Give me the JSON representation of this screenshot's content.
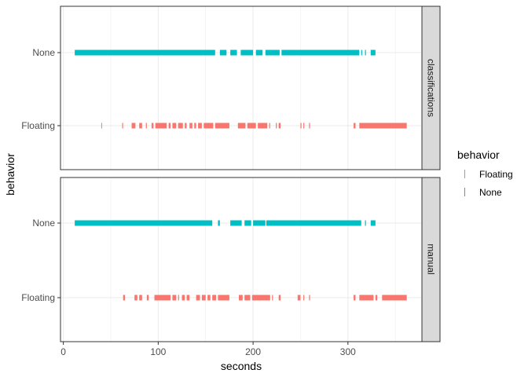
{
  "chart_data": {
    "type": "scatter",
    "xlabel": "seconds",
    "ylabel": "behavior",
    "xlim": [
      -3,
      378
    ],
    "x_ticks": [
      0,
      100,
      200,
      300
    ],
    "y_categories": [
      "Floating",
      "None"
    ],
    "grid": true,
    "legend": {
      "title": "behavior",
      "position": "right",
      "entries": [
        {
          "label": "Floating",
          "color": "#F8766D"
        },
        {
          "label": "None",
          "color": "#00BFC4"
        }
      ]
    },
    "colors": {
      "Floating": "#F8766D",
      "None": "#00BFC4"
    },
    "panels": [
      {
        "strip": "classifications",
        "series": [
          {
            "category": "None",
            "intervals": [
              [
                12,
                160
              ],
              [
                165,
                172
              ],
              [
                176,
                183
              ],
              [
                187,
                200
              ],
              [
                203,
                210
              ],
              [
                213,
                228
              ],
              [
                230,
                312
              ],
              [
                314,
                315
              ],
              [
                318,
                319
              ],
              [
                324,
                329
              ]
            ]
          },
          {
            "category": "Floating",
            "intervals": [
              [
                40,
                40
              ],
              [
                62,
                63
              ],
              [
                72,
                76
              ],
              [
                80,
                83
              ],
              [
                87,
                88
              ],
              [
                93,
                95
              ],
              [
                97,
                109
              ],
              [
                111,
                113
              ],
              [
                115,
                119
              ],
              [
                121,
                126
              ],
              [
                128,
                130
              ],
              [
                133,
                136
              ],
              [
                138,
                140
              ],
              [
                142,
                146
              ],
              [
                148,
                158
              ],
              [
                160,
                175
              ],
              [
                184,
                192
              ],
              [
                194,
                203
              ],
              [
                205,
                215
              ],
              [
                217,
                218
              ],
              [
                224,
                225
              ],
              [
                227,
                229
              ],
              [
                250,
                251
              ],
              [
                253,
                254
              ],
              [
                259,
                260
              ],
              [
                306,
                308
              ],
              [
                312,
                362
              ]
            ]
          }
        ]
      },
      {
        "strip": "manual",
        "series": [
          {
            "category": "None",
            "intervals": [
              [
                12,
                157
              ],
              [
                163,
                165
              ],
              [
                176,
                188
              ],
              [
                191,
                198
              ],
              [
                200,
                213
              ],
              [
                214,
                314
              ],
              [
                318,
                319
              ],
              [
                324,
                329
              ]
            ]
          },
          {
            "category": "Floating",
            "intervals": [
              [
                63,
                65
              ],
              [
                75,
                78
              ],
              [
                80,
                83
              ],
              [
                88,
                90
              ],
              [
                96,
                113
              ],
              [
                115,
                119
              ],
              [
                121,
                122
              ],
              [
                125,
                128
              ],
              [
                130,
                133
              ],
              [
                140,
                144
              ],
              [
                146,
                150
              ],
              [
                152,
                155
              ],
              [
                157,
                161
              ],
              [
                163,
                175
              ],
              [
                185,
                189
              ],
              [
                191,
                197
              ],
              [
                199,
                218
              ],
              [
                220,
                221
              ],
              [
                227,
                229
              ],
              [
                247,
                250
              ],
              [
                253,
                254
              ],
              [
                259,
                260
              ],
              [
                306,
                308
              ],
              [
                312,
                327
              ],
              [
                329,
                331
              ],
              [
                336,
                362
              ]
            ]
          }
        ]
      }
    ]
  }
}
